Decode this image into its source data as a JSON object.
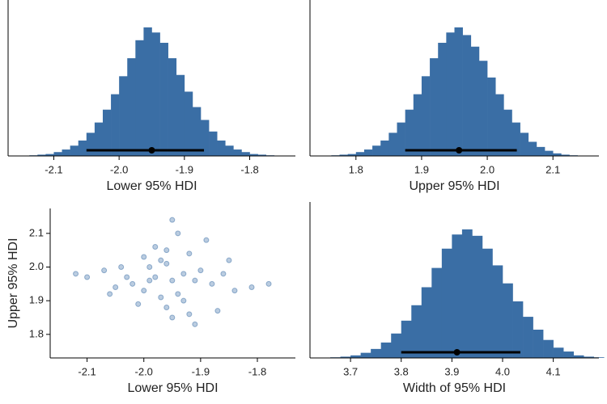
{
  "chart_data": [
    {
      "type": "histogram",
      "color": "#3a6ea5",
      "xlabel": "Lower 95% HDI",
      "xlim": [
        -2.17,
        -1.73
      ],
      "ylim": [
        0,
        115
      ],
      "xticks": [
        -2.1,
        {
          "value": -2,
          "label": "-2.0"
        },
        -1.9,
        -1.8
      ],
      "bins": [
        -2.15,
        -2.1375,
        -2.125,
        -2.1125,
        -2.1,
        -2.0875,
        -2.075,
        -2.0625,
        -2.05,
        -2.0375,
        -2.025,
        -2.0125,
        -2,
        -1.9875,
        -1.975,
        -1.9625,
        -1.95,
        -1.9375,
        -1.925,
        -1.9125,
        -1.9,
        -1.8875,
        -1.875,
        -1.8625,
        -1.85,
        -1.8375,
        -1.825,
        -1.8125,
        -1.8,
        -1.7875,
        -1.775,
        -1.7625,
        -1.75
      ],
      "counts": [
        0,
        0.5,
        1,
        1.5,
        3,
        5,
        8,
        12,
        18,
        26,
        36,
        48,
        62,
        76,
        90,
        100,
        96,
        88,
        76,
        63,
        50,
        38,
        28,
        19,
        12,
        8,
        5,
        3,
        1.5,
        1,
        0.5,
        0
      ],
      "interval": [
        -2.05,
        -1.87
      ],
      "point_estimate": -1.95
    },
    {
      "type": "histogram",
      "color": "#3a6ea5",
      "xlabel": "Upper 95% HDI",
      "xlim": [
        1.73,
        2.17
      ],
      "ylim": [
        0,
        115
      ],
      "xticks": [
        1.8,
        1.9,
        {
          "value": 2,
          "label": "2.0"
        },
        2.1
      ],
      "bins": [
        1.75,
        1.7625,
        1.775,
        1.7875,
        1.8,
        1.8125,
        1.825,
        1.8375,
        1.85,
        1.8625,
        1.875,
        1.8875,
        1.9,
        1.9125,
        1.925,
        1.9375,
        1.95,
        1.9625,
        1.975,
        1.9875,
        2,
        2.0125,
        2.025,
        2.0375,
        2.05,
        2.0625,
        2.075,
        2.0875,
        2.1,
        2.1125,
        2.125,
        2.1375,
        2.15
      ],
      "counts": [
        0,
        0.5,
        1,
        1.5,
        3,
        5,
        8,
        12,
        18,
        26,
        36,
        48,
        62,
        76,
        88,
        96,
        100,
        94,
        85,
        74,
        61,
        48,
        36,
        26,
        18,
        11,
        7,
        4,
        2,
        1,
        0.5,
        0
      ],
      "interval": [
        1.875,
        2.045
      ],
      "point_estimate": 1.957
    },
    {
      "type": "scatter",
      "color": "#3a6ea5",
      "xlabel": "Lower 95% HDI",
      "ylabel": "Upper 95% HDI",
      "xlim": [
        -2.165,
        -1.733
      ],
      "ylim": [
        1.73,
        2.174
      ],
      "xticks": [
        -2.1,
        {
          "value": -2,
          "label": "-2.0"
        },
        -1.9,
        -1.8
      ],
      "yticks": [
        1.8,
        1.9,
        {
          "value": 2,
          "label": "2.0"
        },
        2.1
      ],
      "x": [
        -1.95,
        -1.9,
        -2.0,
        -1.97,
        -1.93,
        -2.03,
        -1.88,
        -1.96,
        -1.99,
        -1.92,
        -2.05,
        -1.86,
        -1.94,
        -1.98,
        -2.01,
        -1.91,
        -1.96,
        -2.07,
        -1.84,
        -1.95,
        -1.89,
        -2.02,
        -1.93,
        -1.97,
        -2.1,
        -1.81,
        -1.94,
        -2.0,
        -1.87,
        -1.99,
        -2.04,
        -1.92,
        -1.96,
        -2.12,
        -1.78,
        -1.95,
        -1.91,
        -2.06,
        -1.85,
        -1.98
      ],
      "y": [
        1.96,
        1.99,
        1.93,
        2.02,
        1.9,
        1.97,
        1.95,
        1.88,
        2.0,
        2.04,
        1.94,
        1.98,
        1.92,
        2.06,
        1.89,
        1.96,
        2.01,
        1.99,
        1.93,
        1.85,
        2.08,
        1.95,
        1.98,
        1.91,
        1.97,
        1.94,
        2.1,
        2.03,
        1.87,
        1.96,
        2.0,
        1.86,
        2.05,
        1.98,
        1.95,
        2.14,
        1.83,
        1.92,
        2.02,
        1.97
      ]
    },
    {
      "type": "histogram",
      "color": "#3a6ea5",
      "xlabel": "Width of 95% HDI",
      "xlim": [
        3.62,
        4.19
      ],
      "ylim": [
        0,
        115
      ],
      "xticks": [
        3.7,
        3.8,
        3.9,
        {
          "value": 4,
          "label": "4.0"
        },
        4.1
      ],
      "bins": [
        3.64,
        3.66,
        3.68,
        3.7,
        3.72,
        3.74,
        3.76,
        3.78,
        3.8,
        3.82,
        3.84,
        3.86,
        3.88,
        3.9,
        3.92,
        3.94,
        3.96,
        3.98,
        4,
        4.02,
        4.04,
        4.06,
        4.08,
        4.1,
        4.12,
        4.14,
        4.16,
        4.18,
        4.2
      ],
      "counts": [
        0,
        0.5,
        1,
        2,
        4,
        7,
        12,
        19,
        29,
        41,
        55,
        70,
        85,
        96,
        100,
        95,
        85,
        72,
        58,
        44,
        32,
        22,
        14,
        8,
        5,
        2,
        1,
        0.5
      ],
      "interval": [
        3.8,
        4.035
      ],
      "point_estimate": 3.91
    }
  ]
}
